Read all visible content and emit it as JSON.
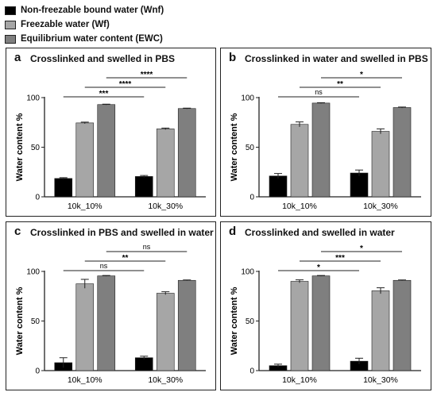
{
  "legend": [
    {
      "label": "Non-freezable bound water (Wnf)",
      "color": "#000000"
    },
    {
      "label": "Freezable water (Wf)",
      "color": "#a6a6a6"
    },
    {
      "label": "Equilibrium water content (EWC)",
      "color": "#7f7f7f"
    }
  ],
  "chart_data": [
    {
      "type": "bar",
      "panel": "a",
      "title": "Crosslinked and swelled in PBS",
      "ylabel": "Water content %",
      "ylim": [
        0,
        100
      ],
      "yticks": [
        0,
        50,
        100
      ],
      "categories": [
        "10k_10%",
        "10k_30%"
      ],
      "series": [
        {
          "name": "Non-freezable bound water (Wnf)",
          "values": [
            18.5,
            20.5
          ],
          "errors": [
            0.8,
            1.0
          ]
        },
        {
          "name": "Freezable water (Wf)",
          "values": [
            74.5,
            68.5
          ],
          "errors": [
            0.8,
            0.8
          ]
        },
        {
          "name": "Equilibrium water content (EWC)",
          "values": [
            93.0,
            89.0
          ],
          "errors": [
            0.4,
            0.4
          ]
        }
      ],
      "significance": [
        {
          "label": "***",
          "pair": [
            0,
            0
          ]
        },
        {
          "label": "****",
          "pair": [
            1,
            1
          ]
        },
        {
          "label": "****",
          "pair": [
            2,
            2
          ]
        }
      ]
    },
    {
      "type": "bar",
      "panel": "b",
      "title": "Crosslinked in water and swelled in PBS",
      "ylabel": "Water content %",
      "ylim": [
        0,
        100
      ],
      "yticks": [
        0,
        50,
        100
      ],
      "categories": [
        "10k_10%",
        "10k_30%"
      ],
      "series": [
        {
          "name": "Non-freezable bound water (Wnf)",
          "values": [
            21.0,
            24.0
          ],
          "errors": [
            2.5,
            3.0
          ]
        },
        {
          "name": "Freezable water (Wf)",
          "values": [
            73.0,
            66.0
          ],
          "errors": [
            2.5,
            2.5
          ]
        },
        {
          "name": "Equilibrium water content (EWC)",
          "values": [
            94.5,
            90.0
          ],
          "errors": [
            0.4,
            0.5
          ]
        }
      ],
      "significance": [
        {
          "label": "ns",
          "pair": [
            0,
            0
          ]
        },
        {
          "label": "**",
          "pair": [
            1,
            1
          ]
        },
        {
          "label": "*",
          "pair": [
            2,
            2
          ]
        }
      ]
    },
    {
      "type": "bar",
      "panel": "c",
      "title": "Crosslinked in PBS and swelled in water",
      "ylabel": "Water content %",
      "ylim": [
        0,
        100
      ],
      "yticks": [
        0,
        50,
        100
      ],
      "categories": [
        "10k_10%",
        "10k_30%"
      ],
      "series": [
        {
          "name": "Non-freezable bound water (Wnf)",
          "values": [
            8.0,
            13.0
          ],
          "errors": [
            5.0,
            1.5
          ]
        },
        {
          "name": "Freezable water (Wf)",
          "values": [
            87.5,
            78.0
          ],
          "errors": [
            4.5,
            1.5
          ]
        },
        {
          "name": "Equilibrium water content (EWC)",
          "values": [
            95.5,
            91.0
          ],
          "errors": [
            0.4,
            0.4
          ]
        }
      ],
      "significance": [
        {
          "label": "ns",
          "pair": [
            0,
            0
          ]
        },
        {
          "label": "**",
          "pair": [
            1,
            1
          ]
        },
        {
          "label": "ns",
          "pair": [
            2,
            2
          ]
        }
      ]
    },
    {
      "type": "bar",
      "panel": "d",
      "title": "Crosslinked and swelled in water",
      "ylabel": "Water content %",
      "ylim": [
        0,
        100
      ],
      "yticks": [
        0,
        50,
        100
      ],
      "categories": [
        "10k_10%",
        "10k_30%"
      ],
      "series": [
        {
          "name": "Non-freezable bound water (Wnf)",
          "values": [
            5.0,
            9.5
          ],
          "errors": [
            1.5,
            3.0
          ]
        },
        {
          "name": "Freezable water (Wf)",
          "values": [
            90.0,
            80.5
          ],
          "errors": [
            1.5,
            3.0
          ]
        },
        {
          "name": "Equilibrium water content (EWC)",
          "values": [
            95.5,
            91.0
          ],
          "errors": [
            0.4,
            0.4
          ]
        }
      ],
      "significance": [
        {
          "label": "*",
          "pair": [
            0,
            0
          ]
        },
        {
          "label": "***",
          "pair": [
            1,
            1
          ]
        },
        {
          "label": "*",
          "pair": [
            2,
            2
          ]
        }
      ]
    }
  ]
}
